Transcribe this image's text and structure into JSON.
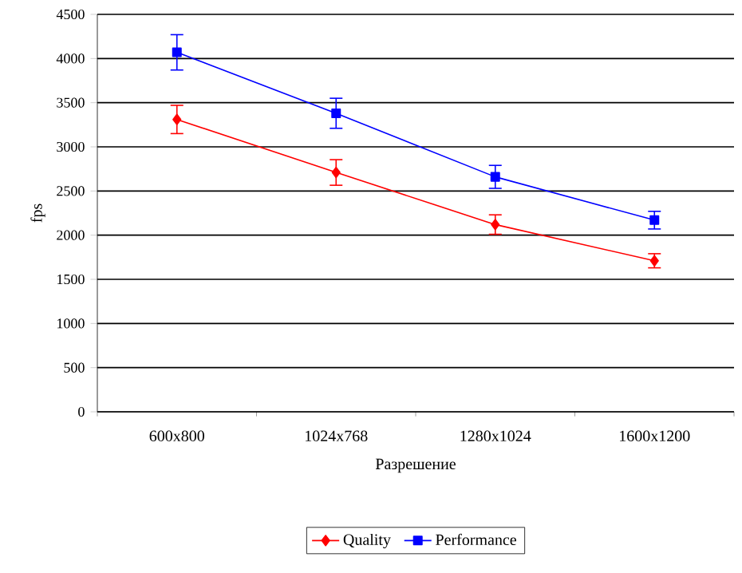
{
  "chart_data": {
    "type": "line",
    "xlabel": "Разрешение",
    "ylabel": "fps",
    "categories": [
      "600x800",
      "1024x768",
      "1280x1024",
      "1600x1200"
    ],
    "series": [
      {
        "name": "Quality",
        "color": "#ff0000",
        "marker": "diamond",
        "values": [
          3310,
          2710,
          2120,
          1710
        ],
        "errors": [
          160,
          145,
          110,
          80
        ]
      },
      {
        "name": "Performance",
        "color": "#0000ff",
        "marker": "square",
        "values": [
          4070,
          3380,
          2660,
          2170
        ],
        "errors": [
          200,
          170,
          130,
          100
        ]
      }
    ],
    "ylim": [
      0,
      4500
    ],
    "yticks": [
      0,
      500,
      1000,
      1500,
      2000,
      2500,
      3000,
      3500,
      4000,
      4500
    ],
    "grid": "y",
    "legend": "bottom"
  }
}
